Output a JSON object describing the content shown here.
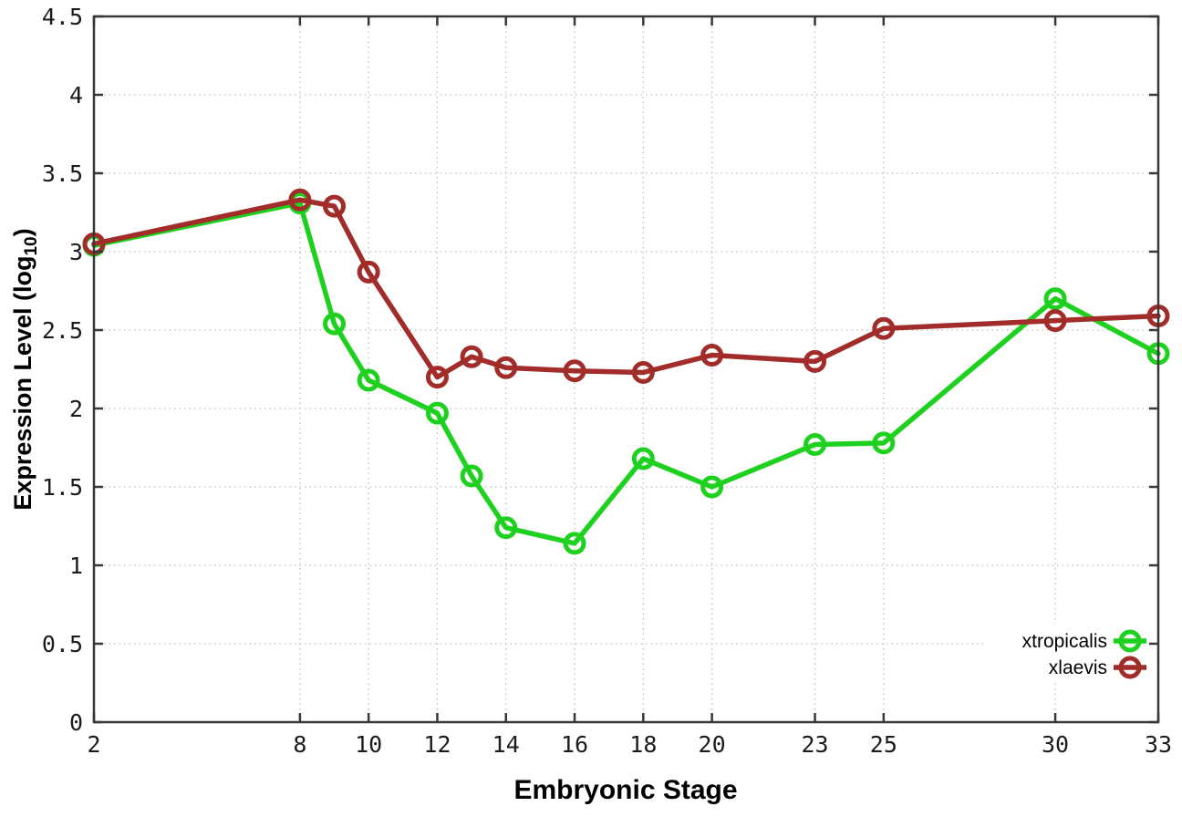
{
  "chart_data": {
    "type": "line",
    "title": "",
    "xlabel": "Embryonic Stage",
    "ylabel": "Expression Level (log10)",
    "ylabel_parts": {
      "main": "Expression Level (log",
      "sub": "10",
      "close": ")"
    },
    "x": [
      2,
      8,
      9,
      10,
      12,
      13,
      14,
      16,
      18,
      20,
      23,
      25,
      30,
      33
    ],
    "series": [
      {
        "name": "xtropicalis",
        "color": "#1ed11e",
        "values": [
          3.04,
          3.31,
          2.54,
          2.18,
          1.97,
          1.57,
          1.24,
          1.14,
          1.68,
          1.5,
          1.77,
          1.78,
          2.7,
          2.35
        ]
      },
      {
        "name": "xlaevis",
        "color": "#a12c2a",
        "values": [
          3.05,
          3.33,
          3.29,
          2.87,
          2.2,
          2.33,
          2.26,
          2.24,
          2.23,
          2.34,
          2.3,
          2.51,
          2.56,
          2.59
        ]
      }
    ],
    "x_ticks": {
      "values": [
        2,
        8,
        10,
        12,
        14,
        16,
        18,
        20,
        23,
        25,
        30,
        33
      ],
      "labels": [
        "2",
        "8",
        "10",
        "12",
        "14",
        "16",
        "18",
        "20",
        "23",
        "25",
        "30",
        "33"
      ]
    },
    "y_ticks": {
      "values": [
        0,
        0.5,
        1,
        1.5,
        2,
        2.5,
        3,
        3.5,
        4,
        4.5
      ],
      "labels": [
        "0",
        "0.5",
        "1",
        "1.5",
        "2",
        "2.5",
        "3",
        "3.5",
        "4",
        "4.5"
      ]
    },
    "xlim": [
      2,
      33
    ],
    "ylim": [
      0,
      4.5
    ],
    "grid": true,
    "legend": {
      "position": "inside-bottom-right",
      "entries": [
        "xtropicalis",
        "xlaevis"
      ]
    },
    "marker": "open-circle",
    "colors": {
      "grid": "#bdbdbd",
      "border": "#383838",
      "tick_text": "#1c1c1c"
    }
  }
}
